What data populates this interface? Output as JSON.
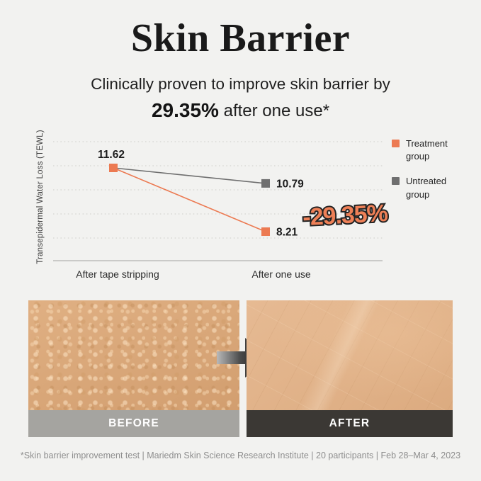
{
  "header": {
    "title": "Skin Barrier",
    "subtitle_line1": "Clinically proven to improve skin barrier by",
    "subtitle_highlight": "29.35%",
    "subtitle_rest": " after one use*"
  },
  "chart_data": {
    "type": "line",
    "categories": [
      "After tape stripping",
      "After one use"
    ],
    "series": [
      {
        "name": "Treatment group",
        "color": "#ec7a52",
        "values": [
          11.62,
          8.21
        ]
      },
      {
        "name": "Untreated group",
        "color": "#6f6f6f",
        "values": [
          11.62,
          10.79
        ]
      }
    ],
    "ylabel": "Transepidermal Water Loss (TEWL)",
    "xlabel": "",
    "annotation": "-29.35%",
    "grid": "dotted-horizontal",
    "legend_position": "right"
  },
  "comparison": {
    "before_label": "BEFORE",
    "after_label": "AFTER",
    "arrow_icon": "right-arrow"
  },
  "footer": {
    "text": "*Skin barrier improvement test | Mariedm Skin Science Research Institute | 20 participants | Feb 28–Mar 4, 2023"
  },
  "colors": {
    "background": "#f2f2f0",
    "accent_orange": "#ec7a52",
    "marker_gray": "#6f6f6f",
    "annotation_fill": "#ee8057",
    "annotation_stroke": "#232323",
    "gridline": "#cfcfca",
    "axis": "#b3b3af",
    "before_bar": "#a5a4a0",
    "after_bar": "#3b3834",
    "skin_before": "#d8a577",
    "skin_after": "#e2b58d"
  }
}
